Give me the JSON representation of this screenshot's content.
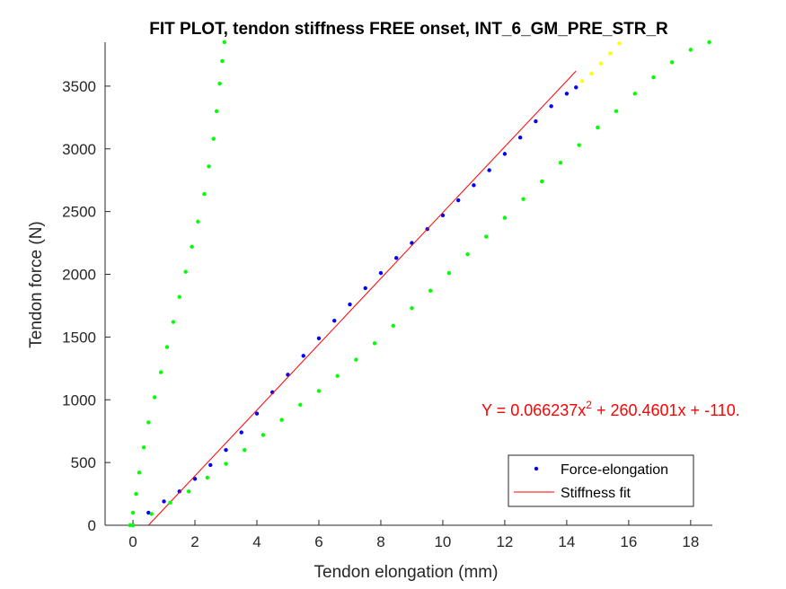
{
  "chart_data": {
    "type": "scatter",
    "title": "FIT PLOT, tendon stiffness FREE onset, INT_6_GM_PRE_STR_R",
    "xlabel": "Tendon elongation (mm)",
    "ylabel": "Tendon force (N)",
    "xlim": [
      -0.9,
      18.7
    ],
    "ylim": [
      0,
      3850
    ],
    "xticks": [
      0,
      2,
      4,
      6,
      8,
      10,
      12,
      14,
      16,
      18
    ],
    "yticks": [
      0,
      500,
      1000,
      1500,
      2000,
      2500,
      3000,
      3500
    ],
    "grid": false,
    "legend_position": "bottom-right",
    "annotation": {
      "text_main": "Y = 0.066237x",
      "text_sup": "2",
      "text_rest": " + 260.4601x + -110.",
      "color": "#ff0000"
    },
    "series": [
      {
        "name": "Force-elongation",
        "color": "#0000ff",
        "style": "dots",
        "x": [
          0.0,
          0.5,
          1.0,
          1.5,
          2.0,
          2.5,
          3.0,
          3.5,
          4.0,
          4.5,
          5.0,
          5.5,
          6.0,
          6.5,
          7.0,
          7.5,
          8.0,
          8.5,
          9.0,
          9.5,
          10.0,
          10.5,
          11.0,
          11.5,
          12.0,
          12.5,
          13.0,
          13.5,
          14.0,
          14.3
        ],
        "y": [
          0,
          100,
          190,
          270,
          370,
          480,
          600,
          740,
          890,
          1060,
          1200,
          1350,
          1490,
          1630,
          1760,
          1890,
          2010,
          2130,
          2250,
          2360,
          2470,
          2590,
          2710,
          2830,
          2960,
          3090,
          3220,
          3340,
          3440,
          3490
        ]
      },
      {
        "name": "Stiffness fit",
        "color": "#ff0000",
        "style": "line",
        "x": [
          0.5,
          14.3
        ],
        "y": [
          0,
          3620
        ]
      },
      {
        "color": "#00ff00",
        "style": "dots",
        "x": [
          -0.1,
          0.0,
          0.1,
          0.2,
          0.35,
          0.5,
          0.7,
          0.9,
          1.1,
          1.3,
          1.5,
          1.7,
          1.9,
          2.1,
          2.3,
          2.45,
          2.6,
          2.7,
          2.8,
          2.88,
          2.95
        ],
        "y": [
          0,
          100,
          250,
          420,
          620,
          820,
          1020,
          1220,
          1420,
          1620,
          1820,
          2020,
          2220,
          2420,
          2640,
          2860,
          3080,
          3300,
          3520,
          3700,
          3850
        ]
      },
      {
        "color": "#00ff00",
        "style": "dots",
        "x": [
          0.0,
          0.6,
          1.2,
          1.8,
          2.4,
          3.0,
          3.6,
          4.2,
          4.8,
          5.4,
          6.0,
          6.6,
          7.2,
          7.8,
          8.4,
          9.0,
          9.6,
          10.2,
          10.8,
          11.4,
          12.0,
          12.6,
          13.2,
          13.8,
          14.4,
          15.0,
          15.6,
          16.2,
          16.8,
          17.4,
          18.0,
          18.6
        ],
        "y": [
          0,
          90,
          180,
          270,
          380,
          490,
          600,
          720,
          840,
          960,
          1070,
          1190,
          1320,
          1450,
          1590,
          1730,
          1870,
          2010,
          2160,
          2300,
          2450,
          2600,
          2740,
          2890,
          3030,
          3170,
          3300,
          3440,
          3570,
          3690,
          3790,
          3850
        ]
      },
      {
        "color": "#ffff00",
        "style": "dots",
        "x": [
          14.5,
          14.8,
          15.1,
          15.4,
          15.7
        ],
        "y": [
          3540,
          3600,
          3680,
          3760,
          3840
        ]
      }
    ]
  }
}
